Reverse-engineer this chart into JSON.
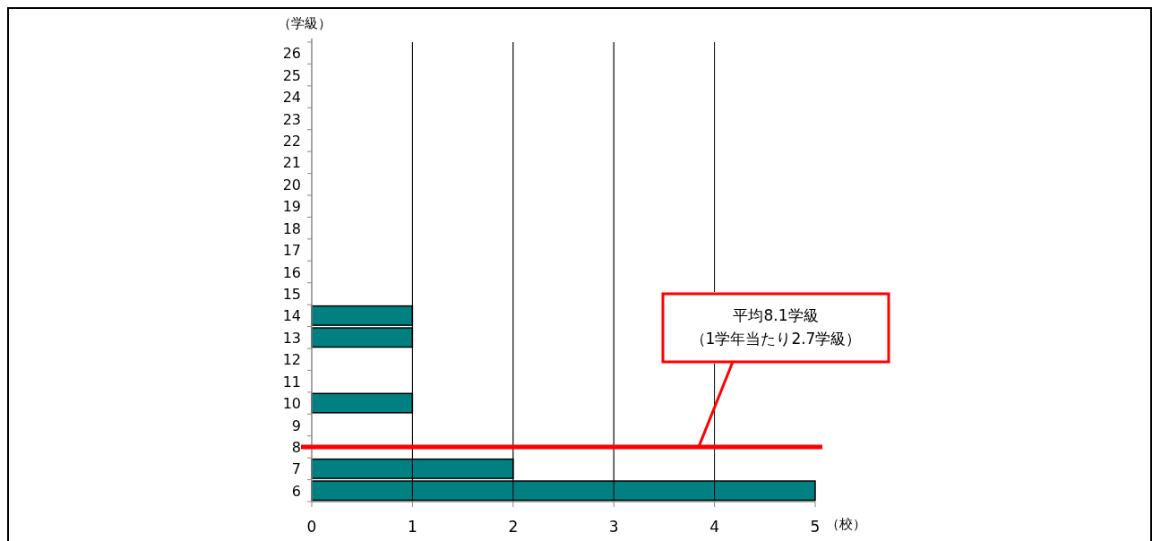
{
  "chart_data": {
    "type": "bar",
    "orientation": "horizontal",
    "categories": [
      "26",
      "25",
      "24",
      "23",
      "22",
      "21",
      "20",
      "19",
      "18",
      "17",
      "16",
      "15",
      "14",
      "13",
      "12",
      "11",
      "10",
      "9",
      "8",
      "7",
      "6"
    ],
    "values": [
      0,
      0,
      0,
      0,
      0,
      0,
      0,
      0,
      0,
      0,
      0,
      0,
      1,
      1,
      0,
      0,
      1,
      0,
      0,
      2,
      5
    ],
    "color": "#008080",
    "xlim": [
      0,
      5
    ],
    "xticks": [
      0,
      1,
      2,
      3,
      4,
      5
    ],
    "xlabel": "（校）",
    "ylabel": "（学級）",
    "grid": "x",
    "ref_lines": [
      {
        "axis": "y",
        "value": "8",
        "label": "平均8.1学級（1学年当たり2.7学級）",
        "color": "#ff0000"
      }
    ]
  }
}
